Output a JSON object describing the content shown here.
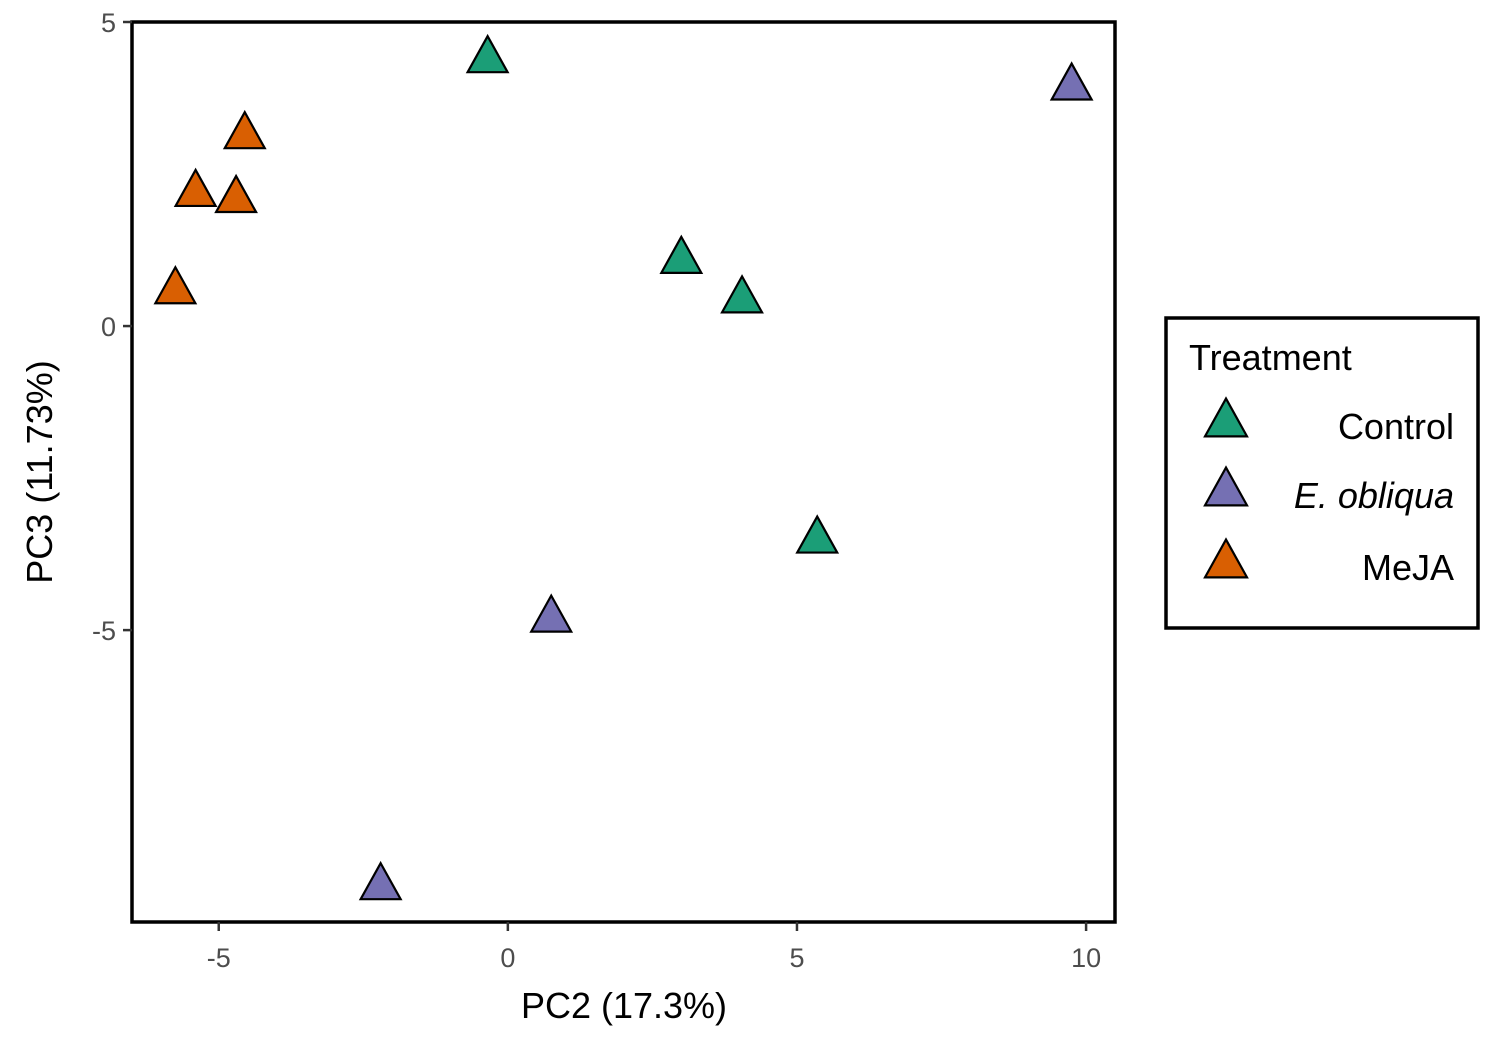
{
  "chart_data": {
    "type": "scatter",
    "xlabel": "PC2 (17.3%)",
    "ylabel": "PC3 (11.73%)",
    "xlim": [
      -6.5,
      10.5
    ],
    "ylim": [
      -9.8,
      5.0
    ],
    "x_ticks": [
      -5,
      0,
      5,
      10
    ],
    "x_tick_labels": [
      "-5",
      "0",
      "5",
      "10"
    ],
    "y_ticks": [
      -5,
      0,
      5
    ],
    "y_tick_labels": [
      "-5",
      "0",
      "5"
    ],
    "grid": false,
    "marker": "triangle",
    "legend": {
      "title": "Treatment",
      "placement": "right"
    },
    "series": [
      {
        "name": "Control",
        "color": "#1b9e77",
        "points": [
          {
            "x": -0.35,
            "y": 4.4
          },
          {
            "x": 3.0,
            "y": 1.1
          },
          {
            "x": 4.05,
            "y": 0.45
          },
          {
            "x": 5.35,
            "y": -3.5
          }
        ]
      },
      {
        "name": "E. obliqua",
        "italic": true,
        "color": "#7570b3",
        "points": [
          {
            "x": 9.75,
            "y": 3.95
          },
          {
            "x": 0.75,
            "y": -4.8
          },
          {
            "x": -2.2,
            "y": -9.2
          }
        ]
      },
      {
        "name": "MeJA",
        "color": "#d95f02",
        "points": [
          {
            "x": -4.55,
            "y": 3.15
          },
          {
            "x": -5.4,
            "y": 2.2
          },
          {
            "x": -4.7,
            "y": 2.1
          },
          {
            "x": -5.75,
            "y": 0.6
          }
        ]
      }
    ]
  }
}
